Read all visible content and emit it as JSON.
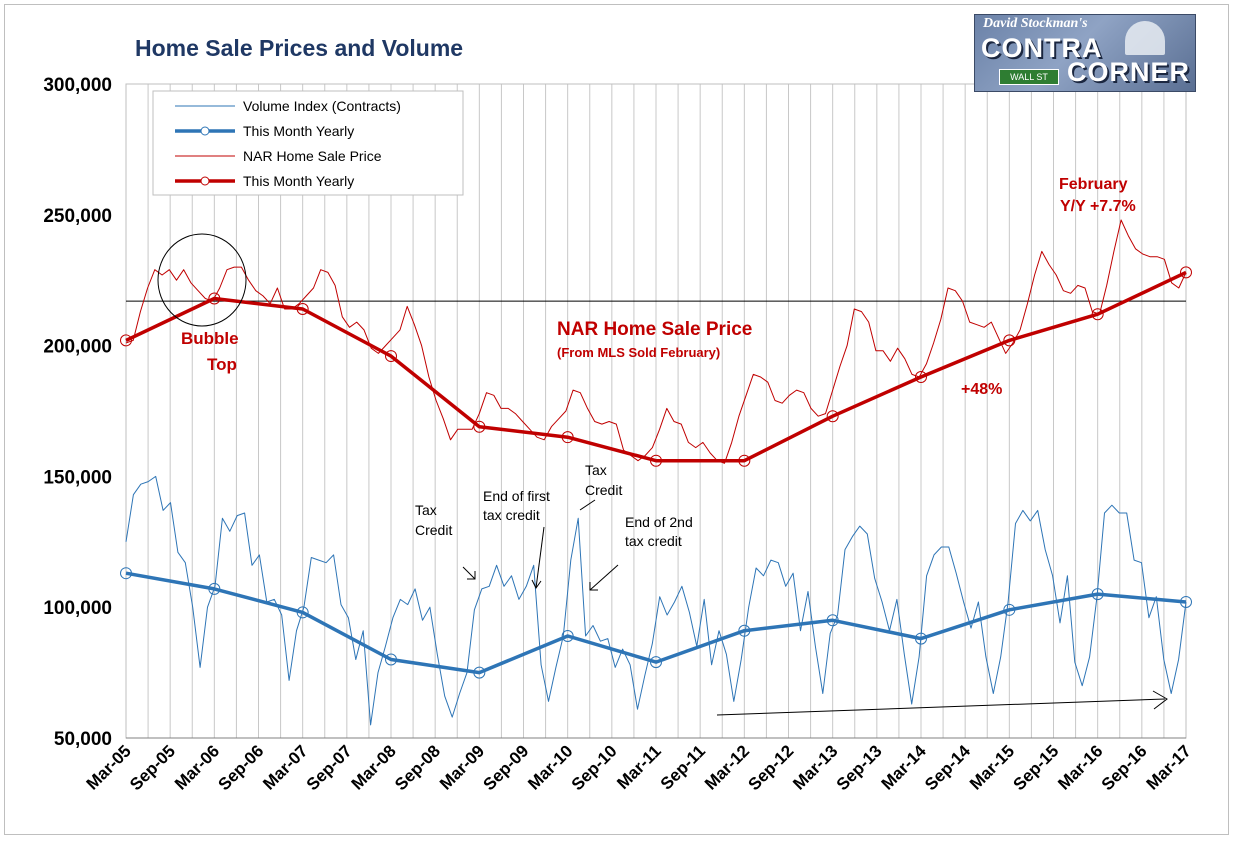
{
  "title": "Home Sale Prices and Volume",
  "logo": {
    "line1": "David Stockman's",
    "line2": "CONTRA",
    "line3": "CORNER",
    "sign": "WALL ST"
  },
  "colors": {
    "volume": "#2e75b6",
    "price": "#c00000",
    "title": "#1f3864"
  },
  "chart_data": {
    "type": "line",
    "title": "Home Sale Prices and Volume",
    "xlabel": "",
    "ylabel": "",
    "ylim": [
      50000,
      300000
    ],
    "yticks": [
      "300,000",
      "250,000",
      "200,000",
      "150,000",
      "100,000",
      "50,000"
    ],
    "ytick_values": [
      300000,
      250000,
      200000,
      150000,
      100000,
      50000
    ],
    "xlim": [
      "Mar-05",
      "Mar-17"
    ],
    "xticks": [
      "Mar-05",
      "Sep-05",
      "Mar-06",
      "Sep-06",
      "Mar-07",
      "Sep-07",
      "Mar-08",
      "Sep-08",
      "Mar-09",
      "Sep-09",
      "Mar-10",
      "Sep-10",
      "Mar-11",
      "Sep-11",
      "Mar-12",
      "Sep-12",
      "Mar-13",
      "Sep-13",
      "Mar-14",
      "Sep-14",
      "Mar-15",
      "Sep-15",
      "Mar-16",
      "Sep-16",
      "Mar-17"
    ],
    "grid": "vertical",
    "legend_position": "top-left",
    "reference_line": 217000,
    "series": [
      {
        "name": "Volume Index (Contracts)",
        "color": "#2e75b6",
        "style": "thin",
        "values": [
          125000,
          143000,
          147000,
          148000,
          150000,
          137000,
          140000,
          121000,
          117000,
          100000,
          77000,
          100000,
          108000,
          134000,
          129000,
          135000,
          136000,
          116000,
          120000,
          102000,
          103000,
          97000,
          72000,
          91000,
          100000,
          119000,
          118000,
          117000,
          120000,
          101000,
          96000,
          80000,
          91000,
          55000,
          75000,
          85000,
          96000,
          103000,
          101000,
          107000,
          95000,
          100000,
          82000,
          66000,
          58000,
          67000,
          75000,
          99000,
          107000,
          108000,
          116000,
          108000,
          112000,
          103000,
          108000,
          116000,
          78000,
          64000,
          77000,
          89000,
          118000,
          134000,
          89000,
          93000,
          87000,
          88000,
          77000,
          84000,
          78000,
          61000,
          74000,
          86000,
          104000,
          97000,
          102000,
          108000,
          98000,
          85000,
          103000,
          78000,
          91000,
          82000,
          64000,
          80000,
          100000,
          115000,
          112000,
          118000,
          117000,
          108000,
          113000,
          91000,
          106000,
          85000,
          67000,
          90000,
          97000,
          122000,
          127000,
          131000,
          128000,
          111000,
          102000,
          91000,
          103000,
          82000,
          63000,
          81000,
          112000,
          120000,
          123000,
          123000,
          113000,
          102000,
          92000,
          102000,
          81000,
          67000,
          81000,
          102000,
          132000,
          137000,
          133000,
          137000,
          122000,
          112000,
          94000,
          112000,
          79000,
          70000,
          81000,
          104000,
          136000,
          139000,
          136000,
          136000,
          118000,
          117000,
          96000,
          104000,
          80000,
          67000,
          80000,
          102000
        ],
        "values_note_is_not_rendered": false
      },
      {
        "name": "This Month Yearly",
        "color": "#2e75b6",
        "style": "thick",
        "x": [
          "Mar-05",
          "Mar-06",
          "Mar-07",
          "Mar-08",
          "Mar-09",
          "Mar-10",
          "Mar-11",
          "Mar-12",
          "Mar-13",
          "Mar-14",
          "Mar-15",
          "Mar-16",
          "Mar-17"
        ],
        "values": [
          113000,
          107000,
          98000,
          80000,
          75000,
          89000,
          79000,
          91000,
          95000,
          88000,
          99000,
          105000,
          102000
        ]
      },
      {
        "name": "NAR Home Sale Price",
        "color": "#c00000",
        "style": "thin",
        "values": [
          201000,
          202000,
          213000,
          222000,
          229000,
          227000,
          229000,
          225000,
          229000,
          224000,
          221000,
          218000,
          217000,
          222000,
          229000,
          230000,
          230000,
          225000,
          221000,
          219000,
          216000,
          222000,
          214000,
          214000,
          216000,
          219000,
          222000,
          229000,
          228000,
          223000,
          211000,
          207000,
          209000,
          206000,
          199000,
          197000,
          200000,
          203000,
          206000,
          215000,
          208000,
          200000,
          188000,
          179000,
          172000,
          164000,
          168000,
          168000,
          168000,
          174000,
          182000,
          181000,
          176000,
          176000,
          174000,
          171000,
          168000,
          165000,
          164000,
          169000,
          172000,
          175000,
          183000,
          182000,
          176000,
          171000,
          170000,
          171000,
          170000,
          160000,
          158000,
          156000,
          158000,
          161000,
          168000,
          176000,
          171000,
          170000,
          163000,
          161000,
          163000,
          159000,
          156000,
          155000,
          163000,
          173000,
          181000,
          189000,
          188000,
          186000,
          179000,
          178000,
          181000,
          183000,
          182000,
          176000,
          173000,
          174000,
          183000,
          192000,
          200000,
          214000,
          213000,
          209000,
          198000,
          198000,
          194000,
          199000,
          195000,
          189000,
          188000,
          193000,
          201000,
          210000,
          222000,
          221000,
          217000,
          209000,
          208000,
          207000,
          209000,
          203000,
          197000,
          201000,
          206000,
          216000,
          227000,
          236000,
          231000,
          227000,
          221000,
          220000,
          223000,
          222000,
          213000,
          212000,
          223000,
          236000,
          248000,
          242000,
          237000,
          235000,
          234000,
          234000,
          233000,
          224000,
          222000,
          228000
        ]
      },
      {
        "name": "This Month Yearly",
        "color": "#c00000",
        "style": "thick",
        "x": [
          "Mar-05",
          "Mar-06",
          "Mar-07",
          "Mar-08",
          "Mar-09",
          "Mar-10",
          "Mar-11",
          "Mar-12",
          "Mar-13",
          "Mar-14",
          "Mar-15",
          "Mar-16",
          "Mar-17"
        ],
        "values": [
          202000,
          218000,
          214000,
          196000,
          169000,
          165000,
          156000,
          156000,
          173000,
          188000,
          202000,
          212000,
          228000
        ]
      }
    ]
  },
  "annotations": {
    "bubble_top_1": "Bubble",
    "bubble_top_2": "Top",
    "nar_title": "NAR Home Sale Price",
    "nar_sub": "(From MLS Sold February)",
    "feb_1": "February",
    "feb_2": "Y/Y +7.7%",
    "pct": "+48%",
    "tax1_1": "Tax",
    "tax1_2": "Credit",
    "end1_1": "End of first",
    "end1_2": "tax credit",
    "tax2_1": "Tax",
    "tax2_2": "Credit",
    "end2_1": "End of 2nd",
    "end2_2": "tax credit"
  }
}
